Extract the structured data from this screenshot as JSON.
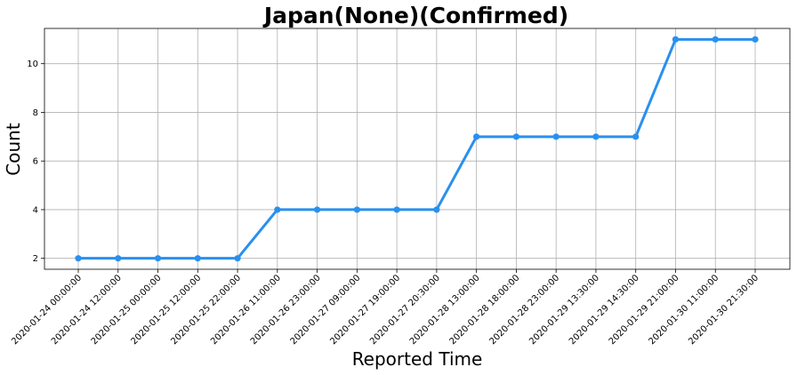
{
  "chart_data": {
    "type": "line",
    "title": "Japan(None)(Confirmed)",
    "xlabel": "Reported Time",
    "ylabel": "Count",
    "categories": [
      "2020-01-24 00:00:00",
      "2020-01-24 12:00:00",
      "2020-01-25 00:00:00",
      "2020-01-25 12:00:00",
      "2020-01-25 22:00:00",
      "2020-01-26 11:00:00",
      "2020-01-26 23:00:00",
      "2020-01-27 09:00:00",
      "2020-01-27 19:00:00",
      "2020-01-27 20:30:00",
      "2020-01-28 13:00:00",
      "2020-01-28 18:00:00",
      "2020-01-28 23:00:00",
      "2020-01-29 13:30:00",
      "2020-01-29 14:30:00",
      "2020-01-29 21:00:00",
      "2020-01-30 11:00:00",
      "2020-01-30 21:30:00"
    ],
    "series": [
      {
        "values": [
          2,
          2,
          2,
          2,
          2,
          4,
          4,
          4,
          4,
          4,
          7,
          7,
          7,
          7,
          7,
          11,
          11,
          11
        ]
      }
    ],
    "yticks": [
      2,
      4,
      6,
      8,
      10
    ],
    "ylim": [
      1.55,
      11.45
    ],
    "grid": true,
    "line_color": "#2990EE"
  }
}
